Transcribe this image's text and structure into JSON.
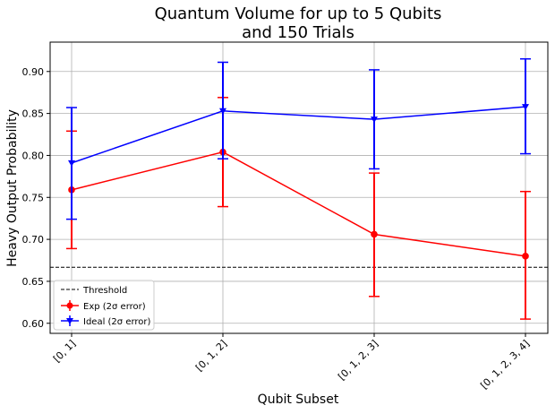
{
  "chart_data": {
    "type": "line",
    "title_line1": "Quantum Volume for up to 5 Qubits",
    "title_line2": "and 150 Trials",
    "xlabel": "Qubit Subset",
    "ylabel": "Heavy Output Probability",
    "categories": [
      "[0, 1]",
      "[0, 1, 2]",
      "[0, 1, 2, 3]",
      "[0, 1, 2, 3, 4]"
    ],
    "ylim": [
      0.588,
      0.935
    ],
    "yticks": [
      "0.60",
      "0.65",
      "0.70",
      "0.75",
      "0.80",
      "0.85",
      "0.90"
    ],
    "grid": true,
    "legend_position": "lower-left",
    "threshold": {
      "name": "Threshold",
      "value": 0.6667,
      "color": "#000000"
    },
    "series": [
      {
        "name": "Exp (2σ error)",
        "color": "#ff0000",
        "marker": "circle",
        "values": [
          0.759,
          0.804,
          0.706,
          0.68
        ],
        "err_low": [
          0.689,
          0.739,
          0.632,
          0.605
        ],
        "err_high": [
          0.829,
          0.869,
          0.779,
          0.757
        ]
      },
      {
        "name": "Ideal (2σ error)",
        "color": "#0000ff",
        "marker": "triangle-down",
        "values": [
          0.791,
          0.853,
          0.843,
          0.858
        ],
        "err_low": [
          0.724,
          0.796,
          0.784,
          0.802
        ],
        "err_high": [
          0.857,
          0.911,
          0.902,
          0.915
        ]
      }
    ]
  }
}
